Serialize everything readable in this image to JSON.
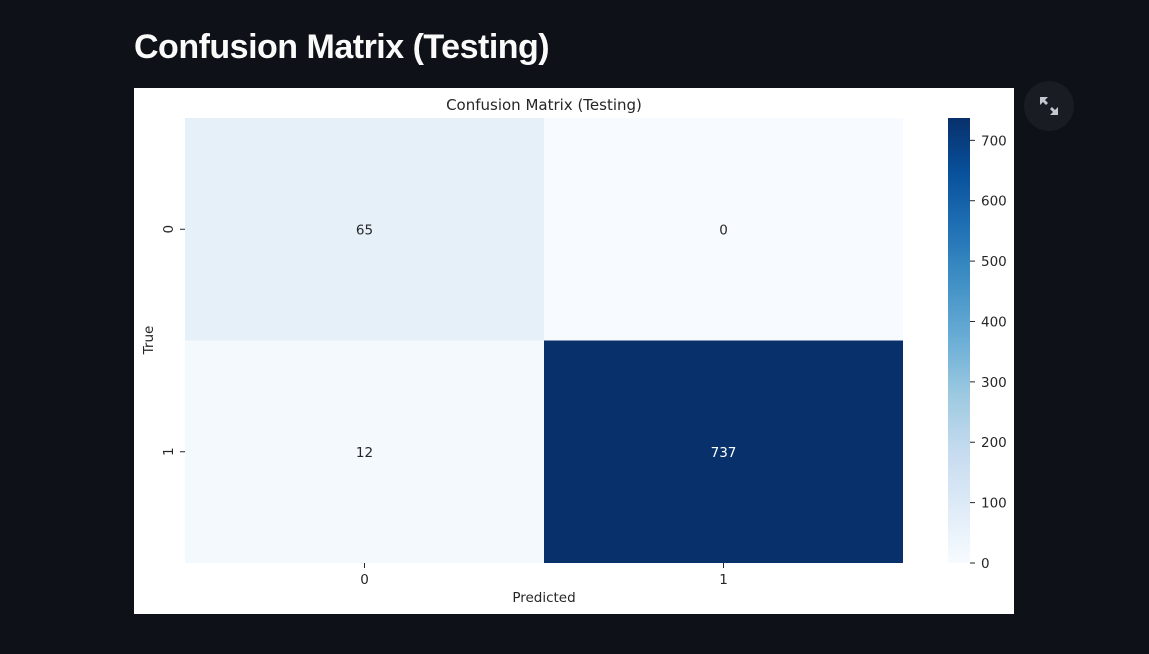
{
  "page": {
    "title": "Confusion Matrix (Testing)"
  },
  "toolbar": {
    "expand_icon": "expand-arrows-icon"
  },
  "colors": {
    "background": "#0e1117",
    "colormap": [
      "#f7fbff",
      "#deebf7",
      "#c6dbef",
      "#9ecae1",
      "#6baed6",
      "#4292c6",
      "#2171b5",
      "#08519c",
      "#08306b"
    ]
  },
  "chart_data": {
    "type": "heatmap",
    "title": "Confusion Matrix (Testing)",
    "xlabel": "Predicted",
    "ylabel": "True",
    "x_categories": [
      "0",
      "1"
    ],
    "y_categories": [
      "0",
      "1"
    ],
    "values": [
      [
        65,
        0
      ],
      [
        12,
        737
      ]
    ],
    "colorbar": {
      "range": [
        0,
        737
      ],
      "ticks": [
        "0",
        "100",
        "200",
        "300",
        "400",
        "500",
        "600",
        "700"
      ]
    },
    "colormap": "Blues",
    "annotations": true
  }
}
